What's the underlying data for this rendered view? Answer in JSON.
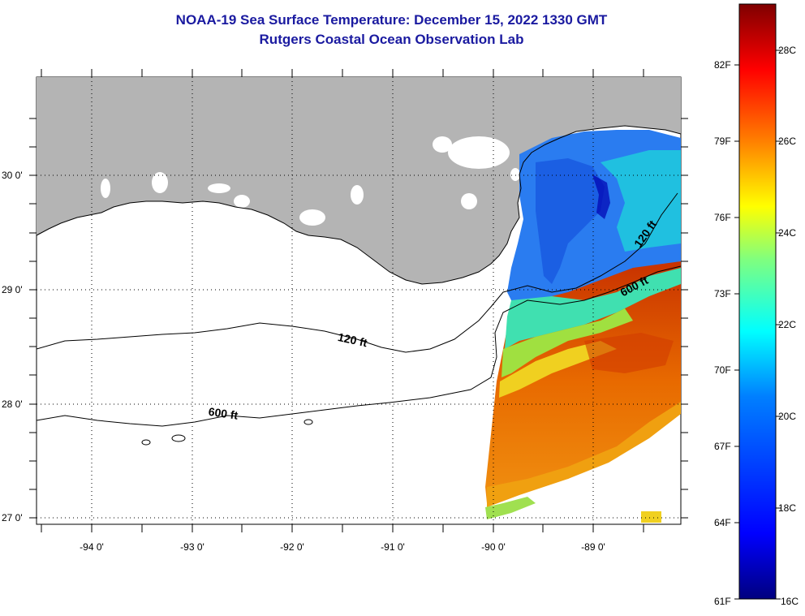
{
  "title": "NOAA-19 Sea Surface Temperature:  December 15, 2022 1330 GMT",
  "subtitle": "Rutgers Coastal Ocean Observation Lab",
  "map": {
    "lat_ticks": [
      "30 0'",
      "29 0'",
      "28 0'",
      "27 0'"
    ],
    "lon_ticks": [
      "-94 0'",
      "-93 0'",
      "-92 0'",
      "-91 0'",
      "-90 0'",
      "-89 0'"
    ],
    "contours": [
      "120 ft",
      "600 ft"
    ],
    "contour_label_positions": [
      "120 ft",
      "600 ft",
      "120 ft",
      "600 ft"
    ],
    "colors": {
      "land": "#b4b4b4",
      "water": "#ffffff",
      "contour": "#000000",
      "title": "#1a1aa0"
    }
  },
  "colorbar": {
    "fahrenheit_labels": [
      "82F",
      "79F",
      "76F",
      "73F",
      "70F",
      "67F",
      "64F",
      "61F"
    ],
    "celsius_labels": [
      "28C",
      "26C",
      "24C",
      "22C",
      "20C",
      "18C",
      "16C"
    ],
    "min_celsius": 16,
    "max_celsius": 29.5,
    "colors": [
      "#00007f",
      "#0000ff",
      "#007fff",
      "#00ffff",
      "#7fff7f",
      "#ffff00",
      "#ff7f00",
      "#ff0000",
      "#7f0000"
    ]
  }
}
